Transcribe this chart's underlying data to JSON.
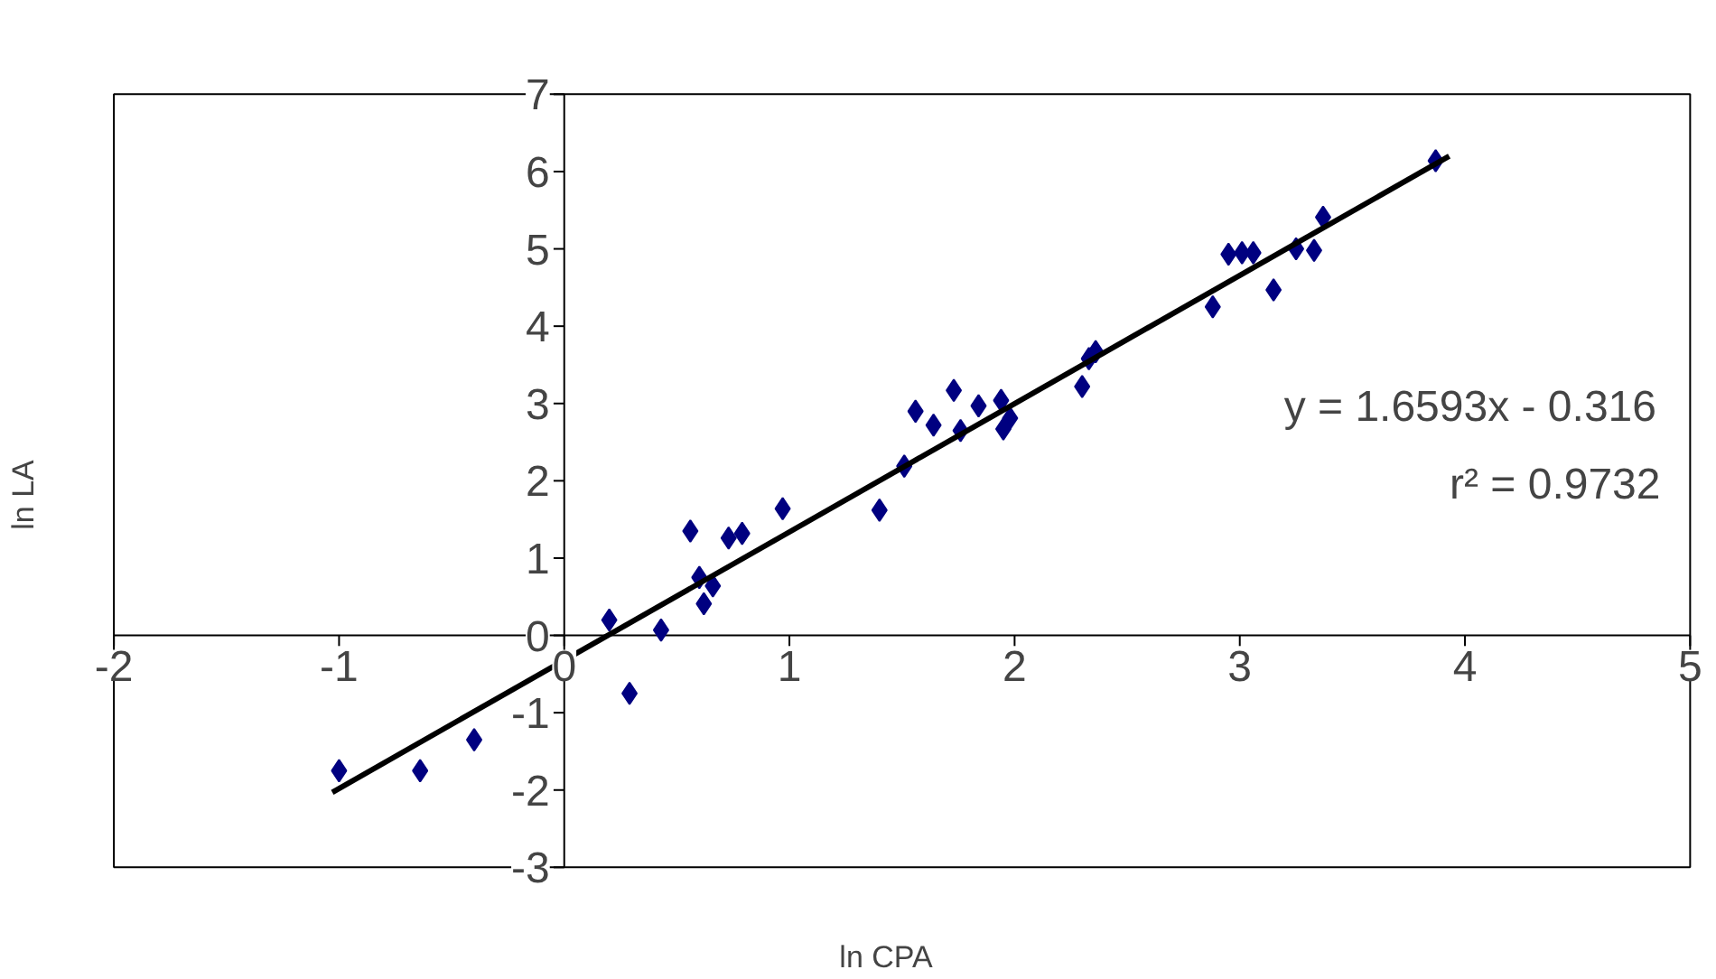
{
  "chart_data": {
    "type": "scatter",
    "xlabel": "ln CPA",
    "ylabel": "ln LA",
    "xlim": [
      -2,
      5
    ],
    "ylim": [
      -3,
      7
    ],
    "xticks": [
      -2,
      -1,
      0,
      1,
      2,
      3,
      4,
      5
    ],
    "yticks": [
      -3,
      -2,
      -1,
      0,
      1,
      2,
      3,
      4,
      5,
      6,
      7
    ],
    "grid": false,
    "annotations": [
      "y = 1.6593x - 0.316",
      "r² = 0.9732"
    ],
    "series": [
      {
        "marker": "diamond",
        "color": "#000080",
        "x": [
          -1.0,
          -0.64,
          -0.4,
          0.2,
          0.29,
          0.43,
          0.56,
          0.6,
          0.66,
          0.62,
          0.73,
          0.79,
          0.97,
          1.4,
          1.51,
          1.56,
          1.64,
          1.73,
          1.76,
          1.84,
          1.94,
          1.95,
          1.98,
          2.3,
          2.33,
          2.36,
          2.88,
          2.95,
          3.01,
          3.06,
          3.15,
          3.25,
          3.33,
          3.37,
          3.87
        ],
        "values": [
          -1.75,
          -1.75,
          -1.35,
          0.2,
          -0.75,
          0.07,
          1.35,
          0.75,
          0.64,
          0.41,
          1.26,
          1.32,
          1.64,
          1.62,
          2.19,
          2.9,
          2.72,
          3.17,
          2.65,
          2.97,
          3.04,
          2.67,
          2.81,
          3.22,
          3.58,
          3.67,
          4.25,
          4.93,
          4.95,
          4.95,
          4.47,
          5.0,
          4.98,
          5.41,
          6.14
        ]
      },
      {
        "type": "line",
        "marker": "none",
        "color": "#000000",
        "x": [
          -1.03,
          3.93
        ],
        "values": [
          -2.03,
          6.2
        ]
      }
    ]
  }
}
